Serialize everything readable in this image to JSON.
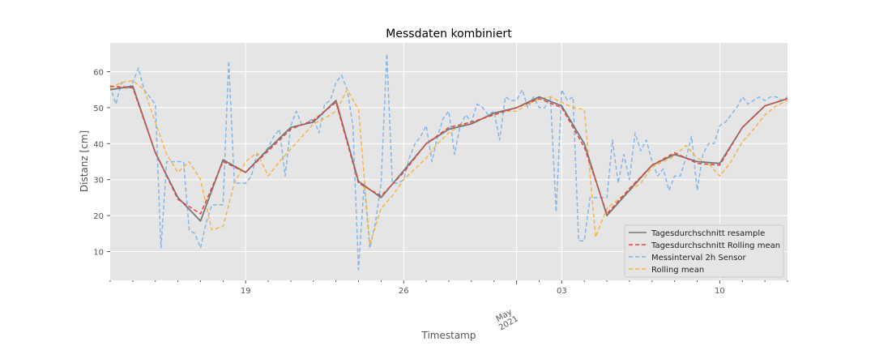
{
  "chart_data": {
    "type": "line",
    "title": "Messdaten kombiniert",
    "xlabel": "Timestamp",
    "ylabel": "Distanz [cm]",
    "x_range": [
      "2021-04-13",
      "2021-05-13"
    ],
    "ylim": [
      2,
      68
    ],
    "y_ticks": [
      10,
      20,
      30,
      40,
      50,
      60
    ],
    "x_ticks": [
      {
        "date": "2021-04-19",
        "label": "19"
      },
      {
        "date": "2021-04-26",
        "label": "26"
      },
      {
        "date": "2021-05-03",
        "label": "03"
      },
      {
        "date": "2021-05-10",
        "label": "10"
      }
    ],
    "x_minor_tick_dates": [
      "2021-04-13",
      "2021-04-14",
      "2021-04-15",
      "2021-04-16",
      "2021-04-17",
      "2021-04-18",
      "2021-04-20",
      "2021-04-21",
      "2021-04-22",
      "2021-04-23",
      "2021-04-24",
      "2021-04-25",
      "2021-04-27",
      "2021-04-28",
      "2021-04-29",
      "2021-04-30",
      "2021-05-01",
      "2021-05-02",
      "2021-05-04",
      "2021-05-05",
      "2021-05-06",
      "2021-05-07",
      "2021-05-08",
      "2021-05-09",
      "2021-05-11",
      "2021-05-12",
      "2021-05-13"
    ],
    "major_label": {
      "date": "2021-05-01",
      "lines": [
        "May",
        "2021"
      ]
    },
    "grid": true,
    "legend_position": "lower right",
    "series": [
      {
        "name": "Tagesdurchschnitt resample",
        "color": "#777777",
        "dash": "solid",
        "x": [
          "2021-04-13",
          "2021-04-14",
          "2021-04-15",
          "2021-04-16",
          "2021-04-17",
          "2021-04-18",
          "2021-04-19",
          "2021-04-20",
          "2021-04-21",
          "2021-04-22",
          "2021-04-23",
          "2021-04-24",
          "2021-04-25",
          "2021-04-26",
          "2021-04-27",
          "2021-04-28",
          "2021-04-29",
          "2021-04-30",
          "2021-05-01",
          "2021-05-02",
          "2021-05-03",
          "2021-05-04",
          "2021-05-05",
          "2021-05-06",
          "2021-05-07",
          "2021-05-08",
          "2021-05-09",
          "2021-05-10",
          "2021-05-11",
          "2021-05-12",
          "2021-05-13"
        ],
        "y": [
          55.0,
          56.0,
          37.5,
          25.0,
          18.5,
          35.5,
          32.0,
          38.5,
          44.5,
          46.0,
          52.0,
          29.5,
          25.0,
          32.5,
          40.0,
          44.0,
          45.5,
          48.5,
          50.0,
          53.0,
          50.5,
          40.0,
          20.0,
          27.0,
          34.0,
          37.0,
          35.0,
          34.5,
          44.5,
          50.5,
          52.5
        ]
      },
      {
        "name": "Tagesdurchschnitt Rolling mean",
        "color": "#e8453c",
        "dash": "dashed",
        "x": [
          "2021-04-13",
          "2021-04-14",
          "2021-04-15",
          "2021-04-16",
          "2021-04-17",
          "2021-04-18",
          "2021-04-19",
          "2021-04-20",
          "2021-04-21",
          "2021-04-22",
          "2021-04-23",
          "2021-04-24",
          "2021-04-25",
          "2021-04-26",
          "2021-04-27",
          "2021-04-28",
          "2021-04-29",
          "2021-04-30",
          "2021-05-01",
          "2021-05-02",
          "2021-05-03",
          "2021-05-04",
          "2021-05-05",
          "2021-05-06",
          "2021-05-07",
          "2021-05-08",
          "2021-05-09",
          "2021-05-10",
          "2021-05-11",
          "2021-05-12",
          "2021-05-13"
        ],
        "y": [
          56.0,
          55.5,
          37.5,
          24.5,
          20.5,
          35.0,
          32.0,
          38.0,
          44.0,
          46.5,
          51.5,
          29.0,
          25.5,
          32.0,
          40.0,
          44.5,
          46.0,
          48.0,
          50.0,
          52.5,
          50.0,
          39.0,
          20.5,
          27.5,
          34.0,
          37.5,
          34.5,
          34.0,
          44.5,
          50.5,
          52.5
        ]
      },
      {
        "name": "Messinterval 2h Sensor",
        "color": "#82b6e8",
        "dash": "dashed",
        "x": [
          "2021-04-13",
          "2021-04-13.25",
          "2021-04-13.5",
          "2021-04-13.75",
          "2021-04-14",
          "2021-04-14.25",
          "2021-04-14.5",
          "2021-04-14.75",
          "2021-04-15",
          "2021-04-15.25",
          "2021-04-15.5",
          "2021-04-15.75",
          "2021-04-16",
          "2021-04-16.25",
          "2021-04-16.5",
          "2021-04-16.75",
          "2021-04-17",
          "2021-04-17.25",
          "2021-04-17.5",
          "2021-04-17.75",
          "2021-04-18",
          "2021-04-18.25",
          "2021-04-18.5",
          "2021-04-18.75",
          "2021-04-19",
          "2021-04-19.25",
          "2021-04-19.5",
          "2021-04-19.75",
          "2021-04-20",
          "2021-04-20.25",
          "2021-04-20.5",
          "2021-04-20.75",
          "2021-04-21",
          "2021-04-21.25",
          "2021-04-21.5",
          "2021-04-21.75",
          "2021-04-22",
          "2021-04-22.25",
          "2021-04-22.5",
          "2021-04-22.75",
          "2021-04-23",
          "2021-04-23.25",
          "2021-04-23.5",
          "2021-04-23.75",
          "2021-04-24",
          "2021-04-24.25",
          "2021-04-24.5",
          "2021-04-24.75",
          "2021-04-25",
          "2021-04-25.25",
          "2021-04-25.5",
          "2021-04-25.75",
          "2021-04-26",
          "2021-04-26.25",
          "2021-04-26.5",
          "2021-04-26.75",
          "2021-04-27",
          "2021-04-27.25",
          "2021-04-27.5",
          "2021-04-27.75",
          "2021-04-28",
          "2021-04-28.25",
          "2021-04-28.5",
          "2021-04-28.75",
          "2021-04-29",
          "2021-04-29.25",
          "2021-04-29.5",
          "2021-04-29.75",
          "2021-04-30",
          "2021-04-30.25",
          "2021-04-30.5",
          "2021-04-30.75",
          "2021-05-01",
          "2021-05-01.25",
          "2021-05-01.5",
          "2021-05-01.75",
          "2021-05-02",
          "2021-05-02.25",
          "2021-05-02.5",
          "2021-05-02.75",
          "2021-05-03",
          "2021-05-03.25",
          "2021-05-03.5",
          "2021-05-03.75",
          "2021-05-04",
          "2021-05-04.25",
          "2021-05-04.5",
          "2021-05-04.75",
          "2021-05-05",
          "2021-05-05.25",
          "2021-05-05.5",
          "2021-05-05.75",
          "2021-05-06",
          "2021-05-06.25",
          "2021-05-06.5",
          "2021-05-06.75",
          "2021-05-07",
          "2021-05-07.25",
          "2021-05-07.5",
          "2021-05-07.75",
          "2021-05-08",
          "2021-05-08.25",
          "2021-05-08.5",
          "2021-05-08.75",
          "2021-05-09",
          "2021-05-09.25",
          "2021-05-09.5",
          "2021-05-09.75",
          "2021-05-10",
          "2021-05-10.25",
          "2021-05-10.5",
          "2021-05-10.75",
          "2021-05-11",
          "2021-05-11.25",
          "2021-05-11.5",
          "2021-05-11.75",
          "2021-05-12",
          "2021-05-12.25",
          "2021-05-12.5",
          "2021-05-12.75",
          "2021-05-13"
        ],
        "y": [
          56,
          51,
          57,
          55,
          57,
          61,
          55,
          53,
          51,
          11,
          35,
          35,
          35,
          35,
          16,
          15,
          11,
          18,
          23,
          23,
          23,
          63,
          29,
          29,
          29,
          31,
          37,
          37,
          39,
          42,
          44,
          31,
          45,
          49,
          45,
          46,
          47,
          43,
          51,
          52,
          57,
          59,
          55,
          45,
          5,
          29,
          11,
          18,
          29,
          65,
          29,
          29,
          30,
          36,
          40,
          42,
          45,
          35,
          42,
          47,
          49,
          37,
          45,
          48,
          46,
          51,
          50,
          48,
          49,
          41,
          53,
          52,
          52,
          55,
          50,
          53,
          50,
          50,
          53,
          21,
          55,
          52,
          53,
          13,
          13,
          25,
          25,
          25,
          25,
          41,
          29,
          37,
          30,
          43,
          38,
          41,
          35,
          31,
          33,
          27,
          31,
          31,
          36,
          42,
          27,
          37,
          40,
          40,
          45,
          46,
          48,
          50,
          53,
          51,
          52,
          53,
          52,
          53,
          53,
          52,
          53
        ]
      },
      {
        "name": "Rolling mean",
        "color": "#f5b547",
        "dash": "dashed",
        "x": [
          "2021-04-13",
          "2021-04-13.5",
          "2021-04-14",
          "2021-04-14.5",
          "2021-04-15",
          "2021-04-15.5",
          "2021-04-16",
          "2021-04-16.5",
          "2021-04-17",
          "2021-04-17.5",
          "2021-04-18",
          "2021-04-18.5",
          "2021-04-19",
          "2021-04-19.5",
          "2021-04-20",
          "2021-04-20.5",
          "2021-04-21",
          "2021-04-21.5",
          "2021-04-22",
          "2021-04-22.5",
          "2021-04-23",
          "2021-04-23.5",
          "2021-04-24",
          "2021-04-24.5",
          "2021-04-25",
          "2021-04-25.5",
          "2021-04-26",
          "2021-04-26.5",
          "2021-04-27",
          "2021-04-27.5",
          "2021-04-28",
          "2021-04-28.5",
          "2021-04-29",
          "2021-04-29.5",
          "2021-04-30",
          "2021-04-30.5",
          "2021-05-01",
          "2021-05-01.5",
          "2021-05-02",
          "2021-05-02.5",
          "2021-05-03",
          "2021-05-03.5",
          "2021-05-04",
          "2021-05-04.5",
          "2021-05-05",
          "2021-05-05.5",
          "2021-05-06",
          "2021-05-06.5",
          "2021-05-07",
          "2021-05-07.5",
          "2021-05-08",
          "2021-05-08.5",
          "2021-05-09",
          "2021-05-09.5",
          "2021-05-10",
          "2021-05-10.5",
          "2021-05-11",
          "2021-05-11.5",
          "2021-05-12",
          "2021-05-12.5",
          "2021-05-13"
        ],
        "y": [
          55.5,
          57.0,
          57.5,
          55.0,
          46.0,
          37.0,
          32.0,
          35.0,
          30.0,
          16.0,
          17.0,
          29.0,
          35.0,
          37.5,
          31.0,
          35.0,
          38.5,
          42.0,
          45.5,
          47.0,
          49.0,
          55.0,
          49.5,
          12.0,
          22.0,
          25.5,
          30.0,
          33.0,
          36.0,
          40.0,
          43.0,
          45.0,
          46.0,
          47.0,
          48.0,
          49.0,
          49.0,
          51.0,
          52.5,
          53.0,
          51.5,
          50.0,
          49.5,
          14.0,
          22.0,
          24.5,
          27.0,
          29.0,
          33.5,
          35.0,
          36.5,
          39.5,
          36.0,
          34.5,
          31.0,
          35.0,
          40.5,
          44.0,
          48.0,
          50.5,
          52.0
        ]
      }
    ]
  }
}
